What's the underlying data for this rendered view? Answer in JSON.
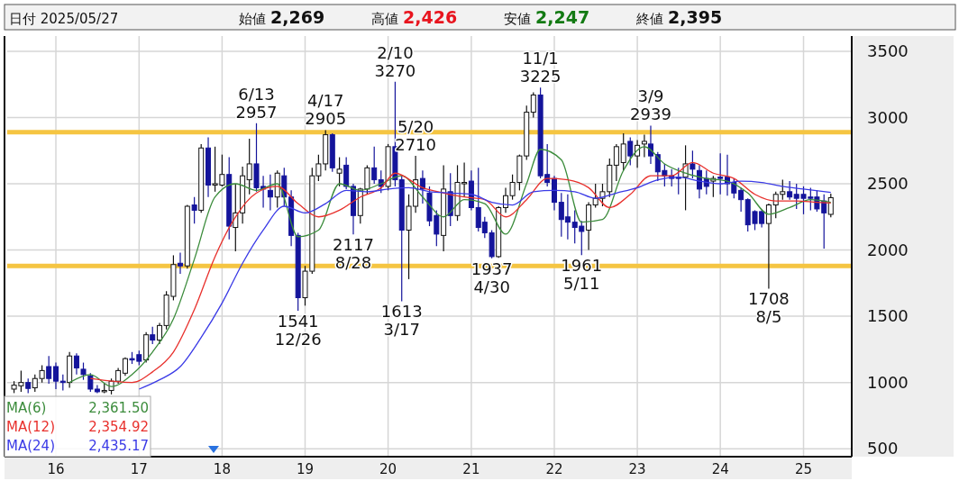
{
  "chart_data": {
    "type": "candlestick",
    "title": "日付 2025/05/27",
    "annotations": [
      "始値 2,269",
      "高値 2,426",
      "安値 2,247",
      "終値 2,395",
      "2,361.50",
      "2,354.92",
      "2,435.17",
      {
        "text": "6/13\n2957",
        "x": "2018-06",
        "y": 2957
      },
      {
        "text": "4/17\n2905",
        "x": "2019-04",
        "y": 2905
      },
      {
        "text": "2/10\n3270",
        "x": "2020-02",
        "y": 3270
      },
      {
        "text": "5/20\n2710",
        "x": "2020-05",
        "y": 2710
      },
      {
        "text": "11/1\n3225",
        "x": "2021-11",
        "y": 3225
      },
      {
        "text": "3/9\n2939",
        "x": "2023-03",
        "y": 2939
      },
      {
        "text": "1541\n12/26",
        "x": "2018-12",
        "y": 1541
      },
      {
        "text": "2117\n8/28",
        "x": "2019-08",
        "y": 2117
      },
      {
        "text": "1613\n3/17",
        "x": "2020-03",
        "y": 1613
      },
      {
        "text": "1937\n4/30",
        "x": "2021-04",
        "y": 1937
      },
      {
        "text": "1961\n5/11",
        "x": "2022-05",
        "y": 1961
      },
      {
        "text": "1708\n8/5",
        "x": "2024-08",
        "y": 1708
      }
    ],
    "xlim": [
      "2015-06",
      "2025-08"
    ],
    "xticks": [
      {
        "value": "2016-01",
        "label": "16"
      },
      {
        "value": "2017-01",
        "label": "17"
      },
      {
        "value": "2018-01",
        "label": "18"
      },
      {
        "value": "2019-01",
        "label": "19"
      },
      {
        "value": "2020-01",
        "label": "20"
      },
      {
        "value": "2021-01",
        "label": "21"
      },
      {
        "value": "2022-01",
        "label": "22"
      },
      {
        "value": "2023-01",
        "label": "23"
      },
      {
        "value": "2024-01",
        "label": "24"
      },
      {
        "value": "2025-01",
        "label": "25"
      }
    ],
    "ylim": [
      440,
      3615
    ],
    "yticks": [
      500,
      1000,
      1500,
      2000,
      2500,
      3000,
      3500
    ],
    "grid": true,
    "legend": "bottom left",
    "ref_lines": [
      {
        "axis": "y",
        "value": 2890,
        "color": "#f5c542"
      },
      {
        "axis": "y",
        "value": 1880,
        "color": "#f5c542"
      }
    ],
    "series": [
      {
        "colors": [
          "#ffffff",
          "#ffffff",
          "#14149b",
          "#ffffff",
          "#ffffff",
          "#14149b",
          "#14149b",
          "#14149b",
          "#ffffff",
          "#14149b",
          "#14149b",
          "#14149b",
          "#14149b",
          "#ffffff",
          "#ffffff",
          "#ffffff",
          "#ffffff",
          "#14149b",
          "#14149b",
          "#ffffff",
          "#14149b",
          "#ffffff",
          "#ffffff",
          "#ffffff",
          "#14149b",
          "#ffffff",
          "#14149b",
          "#ffffff",
          "#14149b",
          "#ffffff",
          "#ffffff",
          "#14149b",
          "#ffffff",
          "#ffffff",
          "#ffffff",
          "#14149b",
          "#14149b",
          "#14149b",
          "#ffffff",
          "#14149b",
          "#14149b",
          "#14149b",
          "#ffffff",
          "#ffffff",
          "#ffffff",
          "#ffffff",
          "#14149b",
          "#ffffff",
          "#14149b",
          "#14149b",
          "#ffffff",
          "#ffffff",
          "#14149b",
          "#14149b",
          "#ffffff",
          "#14149b",
          "#14149b",
          "#ffffff",
          "#ffffff",
          "#14149b",
          "#14149b",
          "#14149b",
          "#ffffff",
          "#14149b",
          "#ffffff",
          "#ffffff",
          "#14149b",
          "#14149b",
          "#14149b",
          "#14149b",
          "#ffffff",
          "#ffffff",
          "#ffffff",
          "#ffffff",
          "#ffffff",
          "#ffffff",
          "#14149b",
          "#14149b",
          "#14149b",
          "#14149b",
          "#14149b",
          "#14149b",
          "#14149b",
          "#ffffff",
          "#ffffff",
          "#ffffff",
          "#ffffff",
          "#ffffff",
          "#ffffff",
          "#14149b",
          "#ffffff",
          "#ffffff",
          "#14149b",
          "#14149b",
          "#14149b",
          "#14149b",
          "#14149b",
          "#ffffff",
          "#14149b",
          "#14149b",
          "#14149b",
          "#ffffff",
          "#14149b",
          "#14149b",
          "#14149b",
          "#14149b",
          "#14149b",
          "#14149b",
          "#14149b",
          "#ffffff",
          "#ffffff",
          "#ffffff",
          "#14149b",
          "#14149b",
          "#14149b",
          "#14149b",
          "#14149b",
          "#14149b",
          "#ffffff"
        ],
        "x": [
          "2015-07",
          "2015-08",
          "2015-09",
          "2015-10",
          "2015-11",
          "2015-12",
          "2016-01",
          "2016-02",
          "2016-03",
          "2016-04",
          "2016-05",
          "2016-06",
          "2016-07",
          "2016-08",
          "2016-09",
          "2016-10",
          "2016-11",
          "2016-12",
          "2017-01",
          "2017-02",
          "2017-03",
          "2017-04",
          "2017-05",
          "2017-06",
          "2017-07",
          "2017-08",
          "2017-09",
          "2017-10",
          "2017-11",
          "2017-12",
          "2018-01",
          "2018-02",
          "2018-03",
          "2018-04",
          "2018-05",
          "2018-06",
          "2018-07",
          "2018-08",
          "2018-09",
          "2018-10",
          "2018-11",
          "2018-12",
          "2019-01",
          "2019-02",
          "2019-03",
          "2019-04",
          "2019-05",
          "2019-06",
          "2019-07",
          "2019-08",
          "2019-09",
          "2019-10",
          "2019-11",
          "2019-12",
          "2020-01",
          "2020-02",
          "2020-03",
          "2020-04",
          "2020-05",
          "2020-06",
          "2020-07",
          "2020-08",
          "2020-09",
          "2020-10",
          "2020-11",
          "2020-12",
          "2021-01",
          "2021-02",
          "2021-03",
          "2021-04",
          "2021-05",
          "2021-06",
          "2021-07",
          "2021-08",
          "2021-09",
          "2021-10",
          "2021-11",
          "2021-12",
          "2022-01",
          "2022-02",
          "2022-03",
          "2022-04",
          "2022-05",
          "2022-06",
          "2022-07",
          "2022-08",
          "2022-09",
          "2022-10",
          "2022-11",
          "2022-12",
          "2023-01",
          "2023-02",
          "2023-03",
          "2023-04",
          "2023-05",
          "2023-06",
          "2023-07",
          "2023-08",
          "2023-09",
          "2023-10",
          "2023-11",
          "2023-12",
          "2024-01",
          "2024-02",
          "2024-03",
          "2024-04",
          "2024-05",
          "2024-06",
          "2024-07",
          "2024-08",
          "2024-09",
          "2024-10",
          "2024-11",
          "2024-12",
          "2025-01",
          "2025-02",
          "2025-03",
          "2025-04",
          "2025-05"
        ],
        "ohlc": [
          [
            950,
            1010,
            920,
            980
          ],
          [
            975,
            1090,
            930,
            1000
          ],
          [
            1000,
            1030,
            920,
            955
          ],
          [
            960,
            1060,
            930,
            1030
          ],
          [
            1030,
            1130,
            1000,
            1090
          ],
          [
            1120,
            1200,
            990,
            1030
          ],
          [
            1120,
            1150,
            950,
            1010
          ],
          [
            1010,
            1060,
            940,
            1000
          ],
          [
            1000,
            1230,
            960,
            1200
          ],
          [
            1200,
            1220,
            1060,
            1110
          ],
          [
            1100,
            1150,
            1020,
            1060
          ],
          [
            1050,
            1070,
            930,
            950
          ],
          [
            950,
            980,
            920,
            930
          ],
          [
            930,
            990,
            920,
            940
          ],
          [
            940,
            1030,
            910,
            1010
          ],
          [
            1010,
            1110,
            990,
            1090
          ],
          [
            1070,
            1190,
            1050,
            1180
          ],
          [
            1180,
            1230,
            1140,
            1170
          ],
          [
            1210,
            1240,
            1130,
            1160
          ],
          [
            1170,
            1380,
            1150,
            1360
          ],
          [
            1360,
            1420,
            1290,
            1320
          ],
          [
            1320,
            1450,
            1290,
            1430
          ],
          [
            1430,
            1690,
            1400,
            1660
          ],
          [
            1650,
            1960,
            1620,
            1890
          ],
          [
            1900,
            1980,
            1820,
            1880
          ],
          [
            1880,
            2340,
            1860,
            2330
          ],
          [
            2340,
            2400,
            2200,
            2300
          ],
          [
            2300,
            2800,
            2280,
            2770
          ],
          [
            2770,
            2850,
            2400,
            2490
          ],
          [
            2490,
            2780,
            2440,
            2500
          ],
          [
            2490,
            2720,
            2480,
            2570
          ],
          [
            2570,
            2700,
            2080,
            2180
          ],
          [
            2170,
            2500,
            1990,
            2280
          ],
          [
            2280,
            2630,
            2200,
            2560
          ],
          [
            2530,
            2840,
            2420,
            2650
          ],
          [
            2650,
            2957,
            2440,
            2470
          ],
          [
            2480,
            2560,
            2320,
            2460
          ],
          [
            2450,
            2570,
            2300,
            2400
          ],
          [
            2400,
            2600,
            2320,
            2580
          ],
          [
            2560,
            2620,
            2330,
            2400
          ],
          [
            2400,
            2450,
            2030,
            2110
          ],
          [
            2110,
            2130,
            1541,
            1640
          ],
          [
            1640,
            1880,
            1580,
            1840
          ],
          [
            1840,
            2620,
            1820,
            2560
          ],
          [
            2560,
            2720,
            2520,
            2650
          ],
          [
            2650,
            2905,
            2600,
            2870
          ],
          [
            2870,
            2880,
            2590,
            2620
          ],
          [
            2580,
            2700,
            2480,
            2610
          ],
          [
            2640,
            2700,
            2460,
            2480
          ],
          [
            2480,
            2500,
            2117,
            2260
          ],
          [
            2260,
            2470,
            2200,
            2460
          ],
          [
            2460,
            2640,
            2420,
            2620
          ],
          [
            2620,
            2780,
            2500,
            2530
          ],
          [
            2530,
            2600,
            2430,
            2480
          ],
          [
            2480,
            2800,
            2450,
            2780
          ],
          [
            2780,
            3270,
            2480,
            2530
          ],
          [
            2530,
            2560,
            1613,
            2150
          ],
          [
            2150,
            2420,
            1780,
            2330
          ],
          [
            2330,
            2710,
            2280,
            2530
          ],
          [
            2540,
            2600,
            2350,
            2460
          ],
          [
            2430,
            2480,
            2180,
            2220
          ],
          [
            2260,
            2300,
            2030,
            2120
          ],
          [
            2110,
            2640,
            1990,
            2460
          ],
          [
            2440,
            2580,
            2180,
            2260
          ],
          [
            2260,
            2640,
            2220,
            2510
          ],
          [
            2500,
            2660,
            2400,
            2510
          ],
          [
            2520,
            2600,
            2300,
            2320
          ],
          [
            2320,
            2620,
            2140,
            2170
          ],
          [
            2210,
            2250,
            2090,
            2130
          ],
          [
            2130,
            2150,
            1937,
            1950
          ],
          [
            1950,
            2330,
            1940,
            2320
          ],
          [
            2320,
            2470,
            2280,
            2410
          ],
          [
            2410,
            2570,
            2380,
            2510
          ],
          [
            2510,
            2720,
            2450,
            2710
          ],
          [
            2710,
            3090,
            2680,
            3040
          ],
          [
            3040,
            3190,
            3000,
            3170
          ],
          [
            3170,
            3225,
            2540,
            2560
          ],
          [
            2570,
            2800,
            2480,
            2510
          ],
          [
            2540,
            2560,
            2300,
            2360
          ],
          [
            2360,
            2430,
            2100,
            2230
          ],
          [
            2250,
            2420,
            2080,
            2210
          ],
          [
            2210,
            2300,
            2050,
            2170
          ],
          [
            2180,
            2220,
            1961,
            2140
          ],
          [
            2150,
            2360,
            2000,
            2340
          ],
          [
            2340,
            2500,
            2320,
            2390
          ],
          [
            2390,
            2500,
            2330,
            2440
          ],
          [
            2440,
            2690,
            2400,
            2640
          ],
          [
            2640,
            2800,
            2520,
            2780
          ],
          [
            2660,
            2880,
            2600,
            2800
          ],
          [
            2820,
            2850,
            2640,
            2710
          ],
          [
            2710,
            2830,
            2620,
            2790
          ],
          [
            2800,
            2870,
            2700,
            2820
          ],
          [
            2800,
            2939,
            2650,
            2710
          ],
          [
            2720,
            2740,
            2520,
            2590
          ],
          [
            2600,
            2650,
            2480,
            2560
          ],
          [
            2560,
            2610,
            2480,
            2540
          ],
          [
            2550,
            2620,
            2420,
            2540
          ],
          [
            2550,
            2790,
            2300,
            2650
          ],
          [
            2650,
            2750,
            2540,
            2610
          ],
          [
            2600,
            2640,
            2390,
            2460
          ],
          [
            2540,
            2600,
            2420,
            2480
          ],
          [
            2520,
            2560,
            2400,
            2540
          ],
          [
            2550,
            2730,
            2420,
            2540
          ],
          [
            2550,
            2720,
            2410,
            2500
          ],
          [
            2510,
            2540,
            2390,
            2430
          ],
          [
            2450,
            2470,
            2290,
            2380
          ],
          [
            2380,
            2390,
            2140,
            2190
          ],
          [
            2290,
            2300,
            2150,
            2200
          ],
          [
            2290,
            2300,
            2170,
            2200
          ],
          [
            2200,
            2350,
            1708,
            2340
          ],
          [
            2340,
            2440,
            2240,
            2420
          ],
          [
            2420,
            2530,
            2380,
            2440
          ],
          [
            2440,
            2520,
            2380,
            2400
          ],
          [
            2420,
            2500,
            2310,
            2390
          ],
          [
            2420,
            2480,
            2270,
            2390
          ],
          [
            2400,
            2470,
            2300,
            2390
          ],
          [
            2400,
            2450,
            2290,
            2310
          ],
          [
            2370,
            2420,
            2010,
            2280
          ],
          [
            2269,
            2426,
            2247,
            2395
          ]
        ]
      },
      {
        "type": "line",
        "name": "MA(6)",
        "color": "#3c8c3c",
        "x": [
          "2016-03",
          "2016-06",
          "2016-09",
          "2016-12",
          "2017-03",
          "2017-06",
          "2017-09",
          "2017-12",
          "2018-03",
          "2018-06",
          "2018-09",
          "2018-12",
          "2019-03",
          "2019-06",
          "2019-09",
          "2019-12",
          "2020-03",
          "2020-06",
          "2020-09",
          "2020-12",
          "2021-03",
          "2021-06",
          "2021-09",
          "2021-11",
          "2022-02",
          "2022-05",
          "2022-08",
          "2022-11",
          "2023-02",
          "2023-05",
          "2023-08",
          "2023-11",
          "2024-02",
          "2024-05",
          "2024-08",
          "2024-11",
          "2025-02",
          "2025-05"
        ],
        "values": [
          1000,
          1060,
          970,
          1060,
          1230,
          1480,
          1930,
          2400,
          2500,
          2450,
          2500,
          2100,
          2150,
          2500,
          2450,
          2500,
          2560,
          2400,
          2250,
          2380,
          2350,
          2120,
          2500,
          2760,
          2680,
          2210,
          2230,
          2600,
          2780,
          2650,
          2580,
          2540,
          2520,
          2430,
          2270,
          2320,
          2380,
          2360
        ]
      },
      {
        "type": "line",
        "name": "MA(12)",
        "color": "#e8302c",
        "x": [
          "2016-06",
          "2016-12",
          "2017-03",
          "2017-06",
          "2017-09",
          "2017-12",
          "2018-03",
          "2018-06",
          "2018-09",
          "2018-12",
          "2019-03",
          "2019-06",
          "2019-09",
          "2019-12",
          "2020-02",
          "2020-06",
          "2020-09",
          "2020-12",
          "2021-03",
          "2021-06",
          "2021-09",
          "2021-12",
          "2022-03",
          "2022-06",
          "2022-09",
          "2022-12",
          "2023-03",
          "2023-06",
          "2023-09",
          "2023-12",
          "2024-03",
          "2024-06",
          "2024-09",
          "2024-12",
          "2025-03",
          "2025-05"
        ],
        "values": [
          1030,
          1000,
          1080,
          1230,
          1550,
          1950,
          2250,
          2430,
          2480,
          2350,
          2250,
          2300,
          2400,
          2470,
          2580,
          2470,
          2430,
          2400,
          2380,
          2250,
          2380,
          2540,
          2530,
          2470,
          2320,
          2420,
          2560,
          2560,
          2660,
          2580,
          2540,
          2420,
          2370,
          2370,
          2360,
          2355
        ]
      },
      {
        "type": "line",
        "name": "MA(24)",
        "color": "#3a3ae6",
        "x": [
          "2017-01",
          "2017-04",
          "2017-07",
          "2017-10",
          "2018-01",
          "2018-04",
          "2018-07",
          "2018-10",
          "2019-01",
          "2019-04",
          "2019-07",
          "2019-10",
          "2020-01",
          "2020-04",
          "2020-07",
          "2020-10",
          "2021-01",
          "2021-04",
          "2021-07",
          "2021-10",
          "2022-01",
          "2022-04",
          "2022-07",
          "2022-10",
          "2023-01",
          "2023-04",
          "2023-07",
          "2023-10",
          "2024-01",
          "2024-04",
          "2024-07",
          "2024-10",
          "2025-01",
          "2025-05"
        ],
        "values": [
          950,
          1020,
          1120,
          1340,
          1600,
          1900,
          2150,
          2330,
          2280,
          2350,
          2450,
          2440,
          2460,
          2470,
          2440,
          2430,
          2420,
          2360,
          2340,
          2440,
          2450,
          2440,
          2390,
          2430,
          2470,
          2530,
          2550,
          2520,
          2500,
          2520,
          2510,
          2480,
          2460,
          2435
        ]
      }
    ]
  }
}
